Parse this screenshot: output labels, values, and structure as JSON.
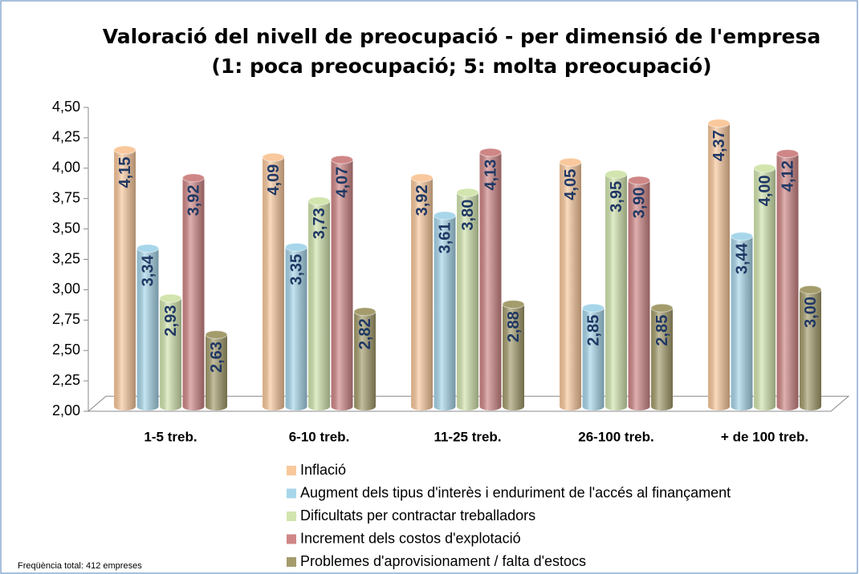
{
  "chart_data": {
    "type": "bar",
    "title": "Valoració del nivell de preocupació - per dimensió de l'empresa",
    "subtitle": "(1: poca preocupació; 5: molta  preocupació)",
    "categories": [
      "1-5 treb.",
      "6-10 treb.",
      "11-25 treb.",
      "26-100 treb.",
      "+ de 100 treb."
    ],
    "series": [
      {
        "name": "Inflació",
        "color": "#f9c89c",
        "values": [
          4.15,
          4.09,
          3.92,
          4.05,
          4.37
        ],
        "value_labels": [
          "4,15",
          "4,09",
          "3,92",
          "4,05",
          "4,37"
        ]
      },
      {
        "name": "Augment dels tipus d'interès i enduriment de l'accés al finançament",
        "color": "#a7d6ea",
        "values": [
          3.34,
          3.35,
          3.61,
          2.85,
          3.44
        ],
        "value_labels": [
          "3,34",
          "3,35",
          "3,61",
          "2,85",
          "3,44"
        ]
      },
      {
        "name": "Dificultats per contractar treballadors",
        "color": "#d2e5ae",
        "values": [
          2.93,
          3.73,
          3.8,
          3.95,
          4.0
        ],
        "value_labels": [
          "2,93",
          "3,73",
          "3,80",
          "3,95",
          "4,00"
        ]
      },
      {
        "name": "Increment dels costos d'explotació",
        "color": "#cf8686",
        "values": [
          3.92,
          4.07,
          4.13,
          3.9,
          4.12
        ],
        "value_labels": [
          "3,92",
          "4,07",
          "4,13",
          "3,90",
          "4,12"
        ]
      },
      {
        "name": "Problemes d'aprovisionament / falta d'estocs",
        "color": "#a49c6c",
        "values": [
          2.63,
          2.82,
          2.88,
          2.85,
          3.0
        ],
        "value_labels": [
          "2,63",
          "2,82",
          "2,88",
          "2,85",
          "3,00"
        ]
      }
    ],
    "ylim": [
      2,
      4.5
    ],
    "yticks": [
      {
        "value": 2,
        "label": "2,00"
      },
      {
        "value": 2.25,
        "label": "2,25"
      },
      {
        "value": 2.5,
        "label": "2,50"
      },
      {
        "value": 2.75,
        "label": "2,75"
      },
      {
        "value": 3,
        "label": "3,00"
      },
      {
        "value": 3.25,
        "label": "3,25"
      },
      {
        "value": 3.5,
        "label": "3,50"
      },
      {
        "value": 3.75,
        "label": "3,75"
      },
      {
        "value": 4,
        "label": "4,00"
      },
      {
        "value": 4.25,
        "label": "4,25"
      },
      {
        "value": 4.5,
        "label": "4,50"
      }
    ],
    "legend": "bottom",
    "note": "Freqüència total: 412 empreses"
  }
}
